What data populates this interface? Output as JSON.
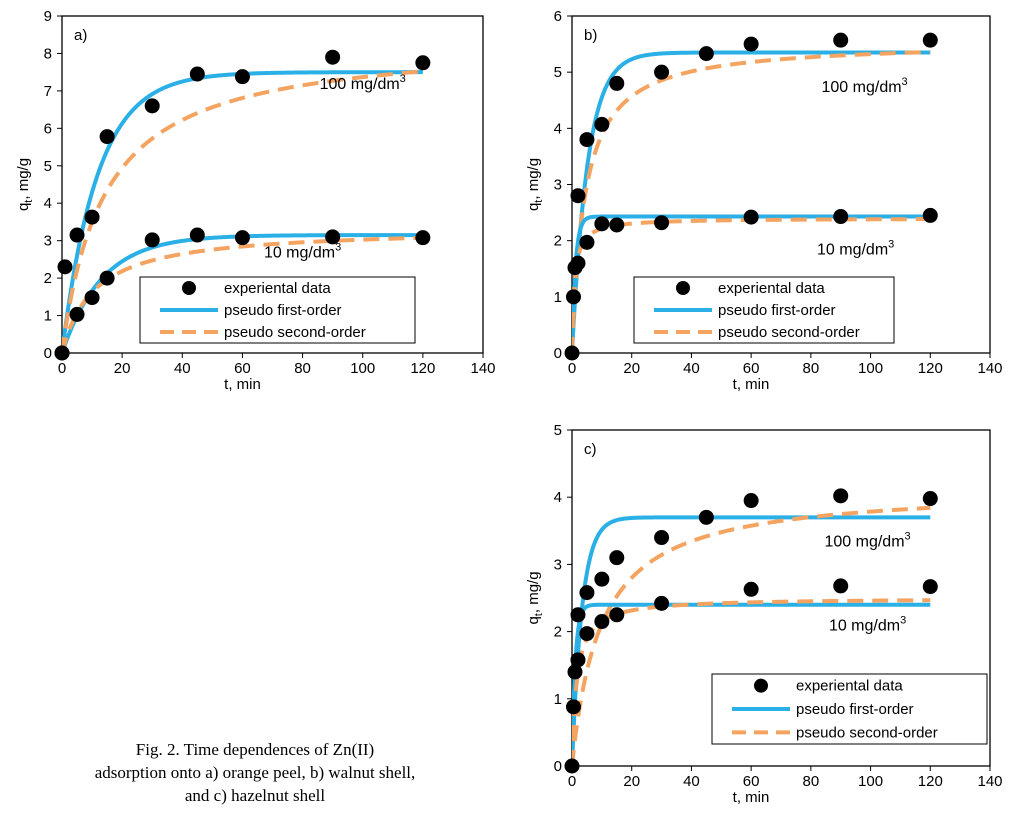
{
  "caption": {
    "lines": [
      "Fig. 2. Time dependences of Zn(II)",
      "adsorption onto a) orange peel, b) walnut shell,",
      "and c) hazelnut shell"
    ]
  },
  "colors": {
    "experimental": "#000000",
    "pseudo_first_order": "#2ab0e6",
    "pseudo_second_order": "#f4a460"
  },
  "chart_data": [
    {
      "type": "scatter",
      "panel_label": "a)",
      "xlabel": "t, min",
      "ylabel": "q",
      "ylabel_sub": "t",
      "ylabel_tail": ", mg/g",
      "xlim": [
        0,
        140
      ],
      "ylim": [
        0,
        9
      ],
      "xticks": [
        0,
        20,
        40,
        60,
        80,
        100,
        120,
        140
      ],
      "yticks": [
        0,
        1,
        2,
        3,
        4,
        5,
        6,
        7,
        8,
        9
      ],
      "legend": [
        "experiental data",
        "pseudo first-order",
        "pseudo second-order"
      ],
      "curve_labels": [
        {
          "main": "100 mg/dm",
          "sup": "3",
          "x": 100,
          "y": 7.05
        },
        {
          "main": "10 mg/dm",
          "sup": "3",
          "x": 80,
          "y": 2.55
        }
      ],
      "series": [
        {
          "name": "experiental data",
          "concentration": "100 mg/dm3",
          "x": [
            0,
            1,
            5,
            10,
            15,
            30,
            45,
            60,
            90,
            120
          ],
          "y": [
            0,
            2.3,
            3.15,
            3.63,
            5.78,
            6.6,
            7.45,
            7.38,
            7.9,
            7.75
          ]
        },
        {
          "name": "experiental data",
          "concentration": "10 mg/dm3",
          "x": [
            0,
            5,
            10,
            15,
            30,
            45,
            60,
            90,
            120
          ],
          "y": [
            0,
            1.03,
            1.48,
            2.0,
            3.02,
            3.15,
            3.08,
            3.1,
            3.08
          ]
        },
        {
          "name": "pseudo first-order",
          "concentration": "100 mg/dm3",
          "model": "pfo",
          "qe": 7.5,
          "k": 0.085
        },
        {
          "name": "pseudo second-order",
          "concentration": "100 mg/dm3",
          "model": "pso",
          "qe": 8.4,
          "k": 0.0085
        },
        {
          "name": "pseudo first-order",
          "concentration": "10 mg/dm3",
          "model": "pfo",
          "qe": 3.15,
          "k": 0.075
        },
        {
          "name": "pseudo second-order",
          "concentration": "10 mg/dm3",
          "model": "pso",
          "qe": 3.35,
          "k": 0.028
        }
      ]
    },
    {
      "type": "scatter",
      "panel_label": "b)",
      "xlabel": "t, min",
      "ylabel": "q",
      "ylabel_sub": "t",
      "ylabel_tail": ", mg/g",
      "xlim": [
        0,
        140
      ],
      "ylim": [
        0,
        6
      ],
      "xticks": [
        0,
        20,
        40,
        60,
        80,
        100,
        120,
        140
      ],
      "yticks": [
        0,
        1,
        2,
        3,
        4,
        5,
        6
      ],
      "legend": [
        "experiental data",
        "pseudo first-order",
        "pseudo second-order"
      ],
      "curve_labels": [
        {
          "main": "100 mg/dm",
          "sup": "3",
          "x": 98,
          "y": 4.65
        },
        {
          "main": "10 mg/dm",
          "sup": "3",
          "x": 95,
          "y": 1.75
        }
      ],
      "series": [
        {
          "name": "experiental data",
          "concentration": "100 mg/dm3",
          "x": [
            0,
            0.5,
            1,
            2,
            5,
            10,
            15,
            30,
            45,
            60,
            90,
            120
          ],
          "y": [
            0,
            1.0,
            1.52,
            2.8,
            3.8,
            4.07,
            4.8,
            5.0,
            5.33,
            5.5,
            5.57,
            5.57
          ]
        },
        {
          "name": "experiental data",
          "concentration": "10 mg/dm3",
          "x": [
            2,
            5,
            10,
            15,
            30,
            60,
            90,
            120
          ],
          "y": [
            1.6,
            1.97,
            2.3,
            2.28,
            2.32,
            2.42,
            2.43,
            2.45
          ]
        },
        {
          "name": "pseudo first-order",
          "concentration": "100 mg/dm3",
          "model": "pfo",
          "qe": 5.35,
          "k": 0.19
        },
        {
          "name": "pseudo second-order",
          "concentration": "100 mg/dm3",
          "model": "pso",
          "qe": 5.55,
          "k": 0.042
        },
        {
          "name": "pseudo first-order",
          "concentration": "10 mg/dm3",
          "model": "pfo",
          "qe": 2.43,
          "k": 0.85
        },
        {
          "name": "pseudo second-order",
          "concentration": "10 mg/dm3",
          "model": "pso",
          "qe": 2.4,
          "k": 0.5
        }
      ]
    },
    {
      "type": "scatter",
      "panel_label": "c)",
      "xlabel": "t, min",
      "ylabel": "q",
      "ylabel_sub": "t",
      "ylabel_tail": ", mg/g",
      "xlim": [
        0,
        140
      ],
      "ylim": [
        0,
        5
      ],
      "xticks": [
        0,
        20,
        40,
        60,
        80,
        100,
        120,
        140
      ],
      "yticks": [
        0,
        1,
        2,
        3,
        4,
        5
      ],
      "legend": [
        "experiental data",
        "pseudo first-order",
        "pseudo second-order"
      ],
      "curve_labels": [
        {
          "main": "100 mg/dm",
          "sup": "3",
          "x": 99,
          "y": 3.27
        },
        {
          "main": "10 mg/dm",
          "sup": "3",
          "x": 99,
          "y": 2.02
        }
      ],
      "series": [
        {
          "name": "experiental data",
          "concentration": "100 mg/dm3",
          "x": [
            0,
            0.5,
            1,
            2,
            5,
            10,
            15,
            30,
            45,
            60,
            90,
            120
          ],
          "y": [
            0,
            0.88,
            1.4,
            2.25,
            2.58,
            2.78,
            3.1,
            3.4,
            3.7,
            3.95,
            4.02,
            3.98
          ]
        },
        {
          "name": "experiental data",
          "concentration": "10 mg/dm3",
          "x": [
            2,
            5,
            10,
            15,
            30,
            60,
            90,
            120
          ],
          "y": [
            1.58,
            1.97,
            2.15,
            2.25,
            2.42,
            2.63,
            2.68,
            2.67
          ]
        },
        {
          "name": "pseudo first-order",
          "concentration": "100 mg/dm3",
          "model": "pfo",
          "qe": 3.7,
          "k": 0.3
        },
        {
          "name": "pseudo second-order",
          "concentration": "100 mg/dm3",
          "model": "pso",
          "qe": 4.15,
          "k": 0.025
        },
        {
          "name": "pseudo first-order",
          "concentration": "10 mg/dm3",
          "model": "pfo",
          "qe": 2.4,
          "k": 0.9
        },
        {
          "name": "pseudo second-order",
          "concentration": "10 mg/dm3",
          "model": "pso",
          "qe": 2.5,
          "k": 0.25
        }
      ]
    }
  ]
}
